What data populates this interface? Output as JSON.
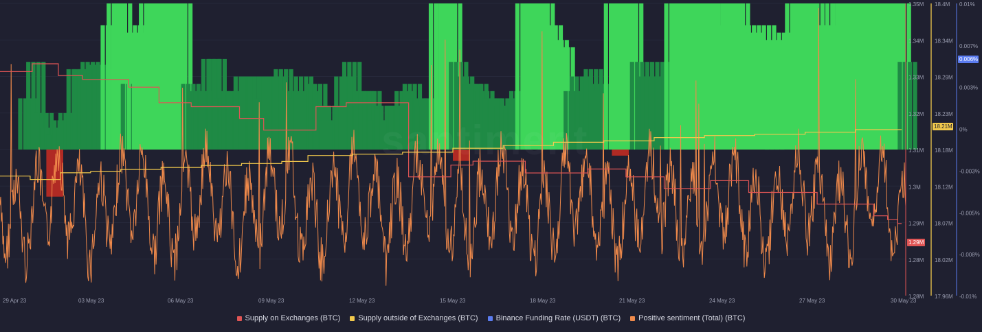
{
  "chart_data": {
    "type": "line",
    "x_labels": [
      "29 Apr 23",
      "03 May 23",
      "06 May 23",
      "09 May 23",
      "12 May 23",
      "15 May 23",
      "18 May 23",
      "21 May 23",
      "24 May 23",
      "27 May 23",
      "30 May 23"
    ],
    "axes": {
      "supply_on_exchanges_ticks": [
        "1.35M",
        "1.34M",
        "1.33M",
        "1.32M",
        "1.31M",
        "1.3M",
        "1.29M",
        "1.28M",
        "1.28M"
      ],
      "supply_outside_ticks": [
        "18.4M",
        "18.34M",
        "18.29M",
        "18.23M",
        "18.18M",
        "18.12M",
        "18.07M",
        "18.02M",
        "17.96M"
      ],
      "funding_rate_ticks": [
        "0.01%",
        "0.007%",
        "0.003%",
        "0%",
        "-0.003%",
        "-0.005%",
        "-0.008%",
        "-0.01%"
      ],
      "supply_on_exchanges_range": [
        1.275,
        1.35
      ],
      "supply_outside_range": [
        17.96,
        18.4
      ],
      "funding_rate_range": [
        -0.01,
        0.01
      ]
    },
    "current_values": {
      "supply_on_exchanges": "1.29M",
      "supply_outside": "18.21M",
      "funding_rate": "0.006%"
    },
    "series": [
      {
        "name": "Supply on Exchanges (BTC)",
        "color": "#e05555",
        "points": [
          [
            0,
            1.3325
          ],
          [
            1.6,
            1.3325
          ],
          [
            1.6,
            1.3345
          ],
          [
            2.9,
            1.3345
          ],
          [
            2.9,
            1.3315
          ],
          [
            4.1,
            1.3315
          ],
          [
            4.1,
            1.3305
          ],
          [
            6.4,
            1.3305
          ],
          [
            6.4,
            1.3285
          ],
          [
            7.9,
            1.3285
          ],
          [
            7.9,
            1.3245
          ],
          [
            9.5,
            1.3245
          ],
          [
            9.5,
            1.3235
          ],
          [
            11.9,
            1.3235
          ],
          [
            11.9,
            1.3205
          ],
          [
            13.1,
            1.3205
          ],
          [
            13.1,
            1.3175
          ],
          [
            15.7,
            1.3175
          ],
          [
            15.7,
            1.3235
          ],
          [
            17.2,
            1.3235
          ],
          [
            17.2,
            1.3245
          ],
          [
            20.3,
            1.3245
          ],
          [
            20.3,
            1.3055
          ],
          [
            22.4,
            1.3055
          ],
          [
            22.4,
            1.3085
          ],
          [
            23.5,
            1.3085
          ],
          [
            23.5,
            1.3095
          ],
          [
            26.1,
            1.3095
          ],
          [
            26.1,
            1.3065
          ],
          [
            29.2,
            1.3065
          ],
          [
            29.2,
            1.3075
          ],
          [
            31.1,
            1.3075
          ],
          [
            31.1,
            1.3055
          ],
          [
            33.0,
            1.3055
          ],
          [
            33.0,
            1.3025
          ],
          [
            35.3,
            1.3025
          ],
          [
            35.3,
            1.3045
          ],
          [
            37.2,
            1.3045
          ],
          [
            37.2,
            1.3015
          ],
          [
            40.6,
            1.3015
          ],
          [
            40.6,
            1.2985
          ],
          [
            43.4,
            1.2985
          ],
          [
            43.4,
            1.2955
          ],
          [
            44.1,
            1.2955
          ],
          [
            44.1,
            1.2945
          ],
          [
            44.6,
            1.2945
          ],
          [
            44.6,
            1.2935
          ],
          [
            44.8,
            1.2935
          ]
        ]
      },
      {
        "name": "Supply outside of Exchanges (BTC)",
        "color": "#f2c94c",
        "points": [
          [
            0,
            18.14
          ],
          [
            1.5,
            18.14
          ],
          [
            1.5,
            18.135
          ],
          [
            3.0,
            18.135
          ],
          [
            3.0,
            18.145
          ],
          [
            4.5,
            18.145
          ],
          [
            4.5,
            18.147
          ],
          [
            6.0,
            18.147
          ],
          [
            6.0,
            18.15
          ],
          [
            8.0,
            18.15
          ],
          [
            8.0,
            18.153
          ],
          [
            10.0,
            18.153
          ],
          [
            10.0,
            18.156
          ],
          [
            12.0,
            18.156
          ],
          [
            12.0,
            18.159
          ],
          [
            14.0,
            18.159
          ],
          [
            14.0,
            18.162
          ],
          [
            15.3,
            18.162
          ],
          [
            15.3,
            18.171
          ],
          [
            17.5,
            18.171
          ],
          [
            17.5,
            18.173
          ],
          [
            20.0,
            18.173
          ],
          [
            20.0,
            18.176
          ],
          [
            22.5,
            18.176
          ],
          [
            22.5,
            18.182
          ],
          [
            25.0,
            18.182
          ],
          [
            25.0,
            18.186
          ],
          [
            27.5,
            18.186
          ],
          [
            27.5,
            18.191
          ],
          [
            30.0,
            18.191
          ],
          [
            30.0,
            18.193
          ],
          [
            32.5,
            18.193
          ],
          [
            32.5,
            18.198
          ],
          [
            35.0,
            18.198
          ],
          [
            35.0,
            18.201
          ],
          [
            37.5,
            18.201
          ],
          [
            37.5,
            18.203
          ],
          [
            40.0,
            18.203
          ],
          [
            40.0,
            18.206
          ],
          [
            42.5,
            18.206
          ],
          [
            42.5,
            18.21
          ],
          [
            44.8,
            18.21
          ]
        ]
      },
      {
        "name": "Binance Funding Rate (USDT) (BTC)",
        "color": "#5b7cf0",
        "bars_green": [
          [
            0.9,
            0.0035
          ],
          [
            1.3,
            0.006
          ],
          [
            1.7,
            0.0025
          ],
          [
            2.0,
            0.0015
          ],
          [
            2.3,
            0.001
          ],
          [
            2.6,
            0.002
          ],
          [
            2.9,
            0.0025
          ],
          [
            3.3,
            0.0055
          ],
          [
            3.6,
            0.0055
          ],
          [
            4.0,
            0.006
          ],
          [
            4.3,
            0.0058
          ],
          [
            4.6,
            0.0055
          ],
          [
            5.0,
            0.0085
          ],
          [
            5.3,
            0.01
          ],
          [
            5.6,
            0.01
          ],
          [
            6.0,
            0.0045
          ],
          [
            6.3,
            0.008
          ],
          [
            6.6,
            0.0085
          ],
          [
            6.9,
            0.01
          ],
          [
            7.3,
            0.01
          ],
          [
            7.6,
            0.01
          ],
          [
            7.9,
            0.01
          ],
          [
            8.3,
            0.01
          ],
          [
            8.6,
            0.01
          ],
          [
            9.0,
            0.0045
          ],
          [
            9.3,
            0.004
          ],
          [
            9.6,
            0.004
          ],
          [
            10.0,
            0.0062
          ],
          [
            10.3,
            0.0062
          ],
          [
            10.6,
            0.0035
          ],
          [
            11.0,
            0.004
          ],
          [
            11.3,
            0.004
          ],
          [
            11.6,
            0.005
          ],
          [
            12.0,
            0.005
          ],
          [
            12.3,
            0.005
          ],
          [
            12.6,
            0.0035
          ],
          [
            13.0,
            0.005
          ],
          [
            13.3,
            0.005
          ],
          [
            13.6,
            0.0055
          ],
          [
            14.0,
            0.004
          ],
          [
            14.3,
            0.0035
          ],
          [
            14.6,
            0.005
          ],
          [
            15.0,
            0.004
          ],
          [
            15.3,
            0.0045
          ],
          [
            15.6,
            0.002
          ],
          [
            16.0,
            0.003
          ],
          [
            16.3,
            0.002
          ],
          [
            16.6,
            0.005
          ],
          [
            17.0,
            0.006
          ],
          [
            17.3,
            0.003
          ],
          [
            17.6,
            0.004
          ],
          [
            18.0,
            0.004
          ],
          [
            18.3,
            0.002
          ],
          [
            18.6,
            0.003
          ],
          [
            19.0,
            0.002
          ],
          [
            19.3,
            0.003
          ],
          [
            19.6,
            0.004
          ],
          [
            20.0,
            0.0045
          ],
          [
            20.3,
            0.0035
          ],
          [
            20.6,
            0.003
          ],
          [
            21.0,
            0.0035
          ],
          [
            21.3,
            0.01
          ],
          [
            21.6,
            0.01
          ],
          [
            22.0,
            0.01
          ],
          [
            22.3,
            0.006
          ],
          [
            22.6,
            0.005
          ],
          [
            23.0,
            0.0045
          ],
          [
            23.3,
            0.0045
          ],
          [
            23.6,
            0.004
          ],
          [
            24.0,
            0.0035
          ],
          [
            24.3,
            0.003
          ],
          [
            24.6,
            0.0035
          ],
          [
            25.0,
            0.003
          ],
          [
            25.3,
            0.004
          ],
          [
            25.6,
            0.01
          ],
          [
            26.0,
            0.01
          ],
          [
            26.3,
            0.01
          ],
          [
            26.6,
            0.01
          ],
          [
            27.0,
            0.0085
          ],
          [
            27.3,
            0.0075
          ],
          [
            27.6,
            0.007
          ],
          [
            28.0,
            0.004
          ],
          [
            28.3,
            0.005
          ],
          [
            28.6,
            0.004
          ],
          [
            29.0,
            0.0055
          ],
          [
            29.3,
            0.0045
          ],
          [
            29.6,
            0.004
          ],
          [
            30.0,
            0.01
          ],
          [
            30.3,
            0.01
          ],
          [
            30.6,
            0.01
          ],
          [
            31.0,
            0.01
          ],
          [
            31.3,
            0.006
          ],
          [
            31.6,
            0.005
          ],
          [
            32.0,
            0.005
          ],
          [
            32.3,
            0.006
          ],
          [
            32.6,
            0.005
          ],
          [
            33.0,
            0.01
          ],
          [
            33.3,
            0.01
          ],
          [
            33.6,
            0.01
          ],
          [
            34.0,
            0.01
          ],
          [
            34.3,
            0.01
          ],
          [
            34.6,
            0.01
          ],
          [
            35.0,
            0.0085
          ],
          [
            35.3,
            0.01
          ],
          [
            35.6,
            0.01
          ],
          [
            36.0,
            0.01
          ],
          [
            36.3,
            0.01
          ],
          [
            36.6,
            0.0085
          ],
          [
            37.0,
            0.008
          ],
          [
            37.3,
            0.007
          ],
          [
            37.6,
            0.0085
          ],
          [
            38.0,
            0.0075
          ],
          [
            38.3,
            0.007
          ],
          [
            38.6,
            0.008
          ],
          [
            39.0,
            0.01
          ],
          [
            39.3,
            0.01
          ],
          [
            39.6,
            0.01
          ],
          [
            40.0,
            0.01
          ],
          [
            40.3,
            0.0085
          ],
          [
            40.6,
            0.0085
          ],
          [
            41.0,
            0.01
          ],
          [
            41.3,
            0.01
          ],
          [
            41.6,
            0.01
          ],
          [
            42.0,
            0.01
          ],
          [
            42.3,
            0.01
          ],
          [
            42.6,
            0.01
          ],
          [
            43.0,
            0.01
          ],
          [
            43.3,
            0.01
          ],
          [
            43.6,
            0.01
          ],
          [
            44.0,
            0.01
          ],
          [
            44.3,
            0.01
          ],
          [
            44.6,
            0.006
          ]
        ],
        "bars_red": [
          [
            2.3,
            -0.0062
          ],
          [
            22.5,
            -0.0015
          ],
          [
            30.4,
            -0.0008
          ]
        ]
      },
      {
        "name": "Positive sentiment (Total) (BTC)",
        "color": "#f08a4b"
      }
    ]
  },
  "legend": [
    {
      "label": "Supply on Exchanges (BTC)",
      "color": "#e05555"
    },
    {
      "label": "Supply outside of Exchanges (BTC)",
      "color": "#f2c94c"
    },
    {
      "label": "Binance Funding Rate (USDT) (BTC)",
      "color": "#5b7cf0"
    },
    {
      "label": "Positive sentiment (Total) (BTC)",
      "color": "#f08a4b"
    }
  ],
  "colors": {
    "bar_green_bright": "#3ed65a",
    "bar_green_dark": "#1f8a45",
    "bar_red": "#b02a24"
  }
}
